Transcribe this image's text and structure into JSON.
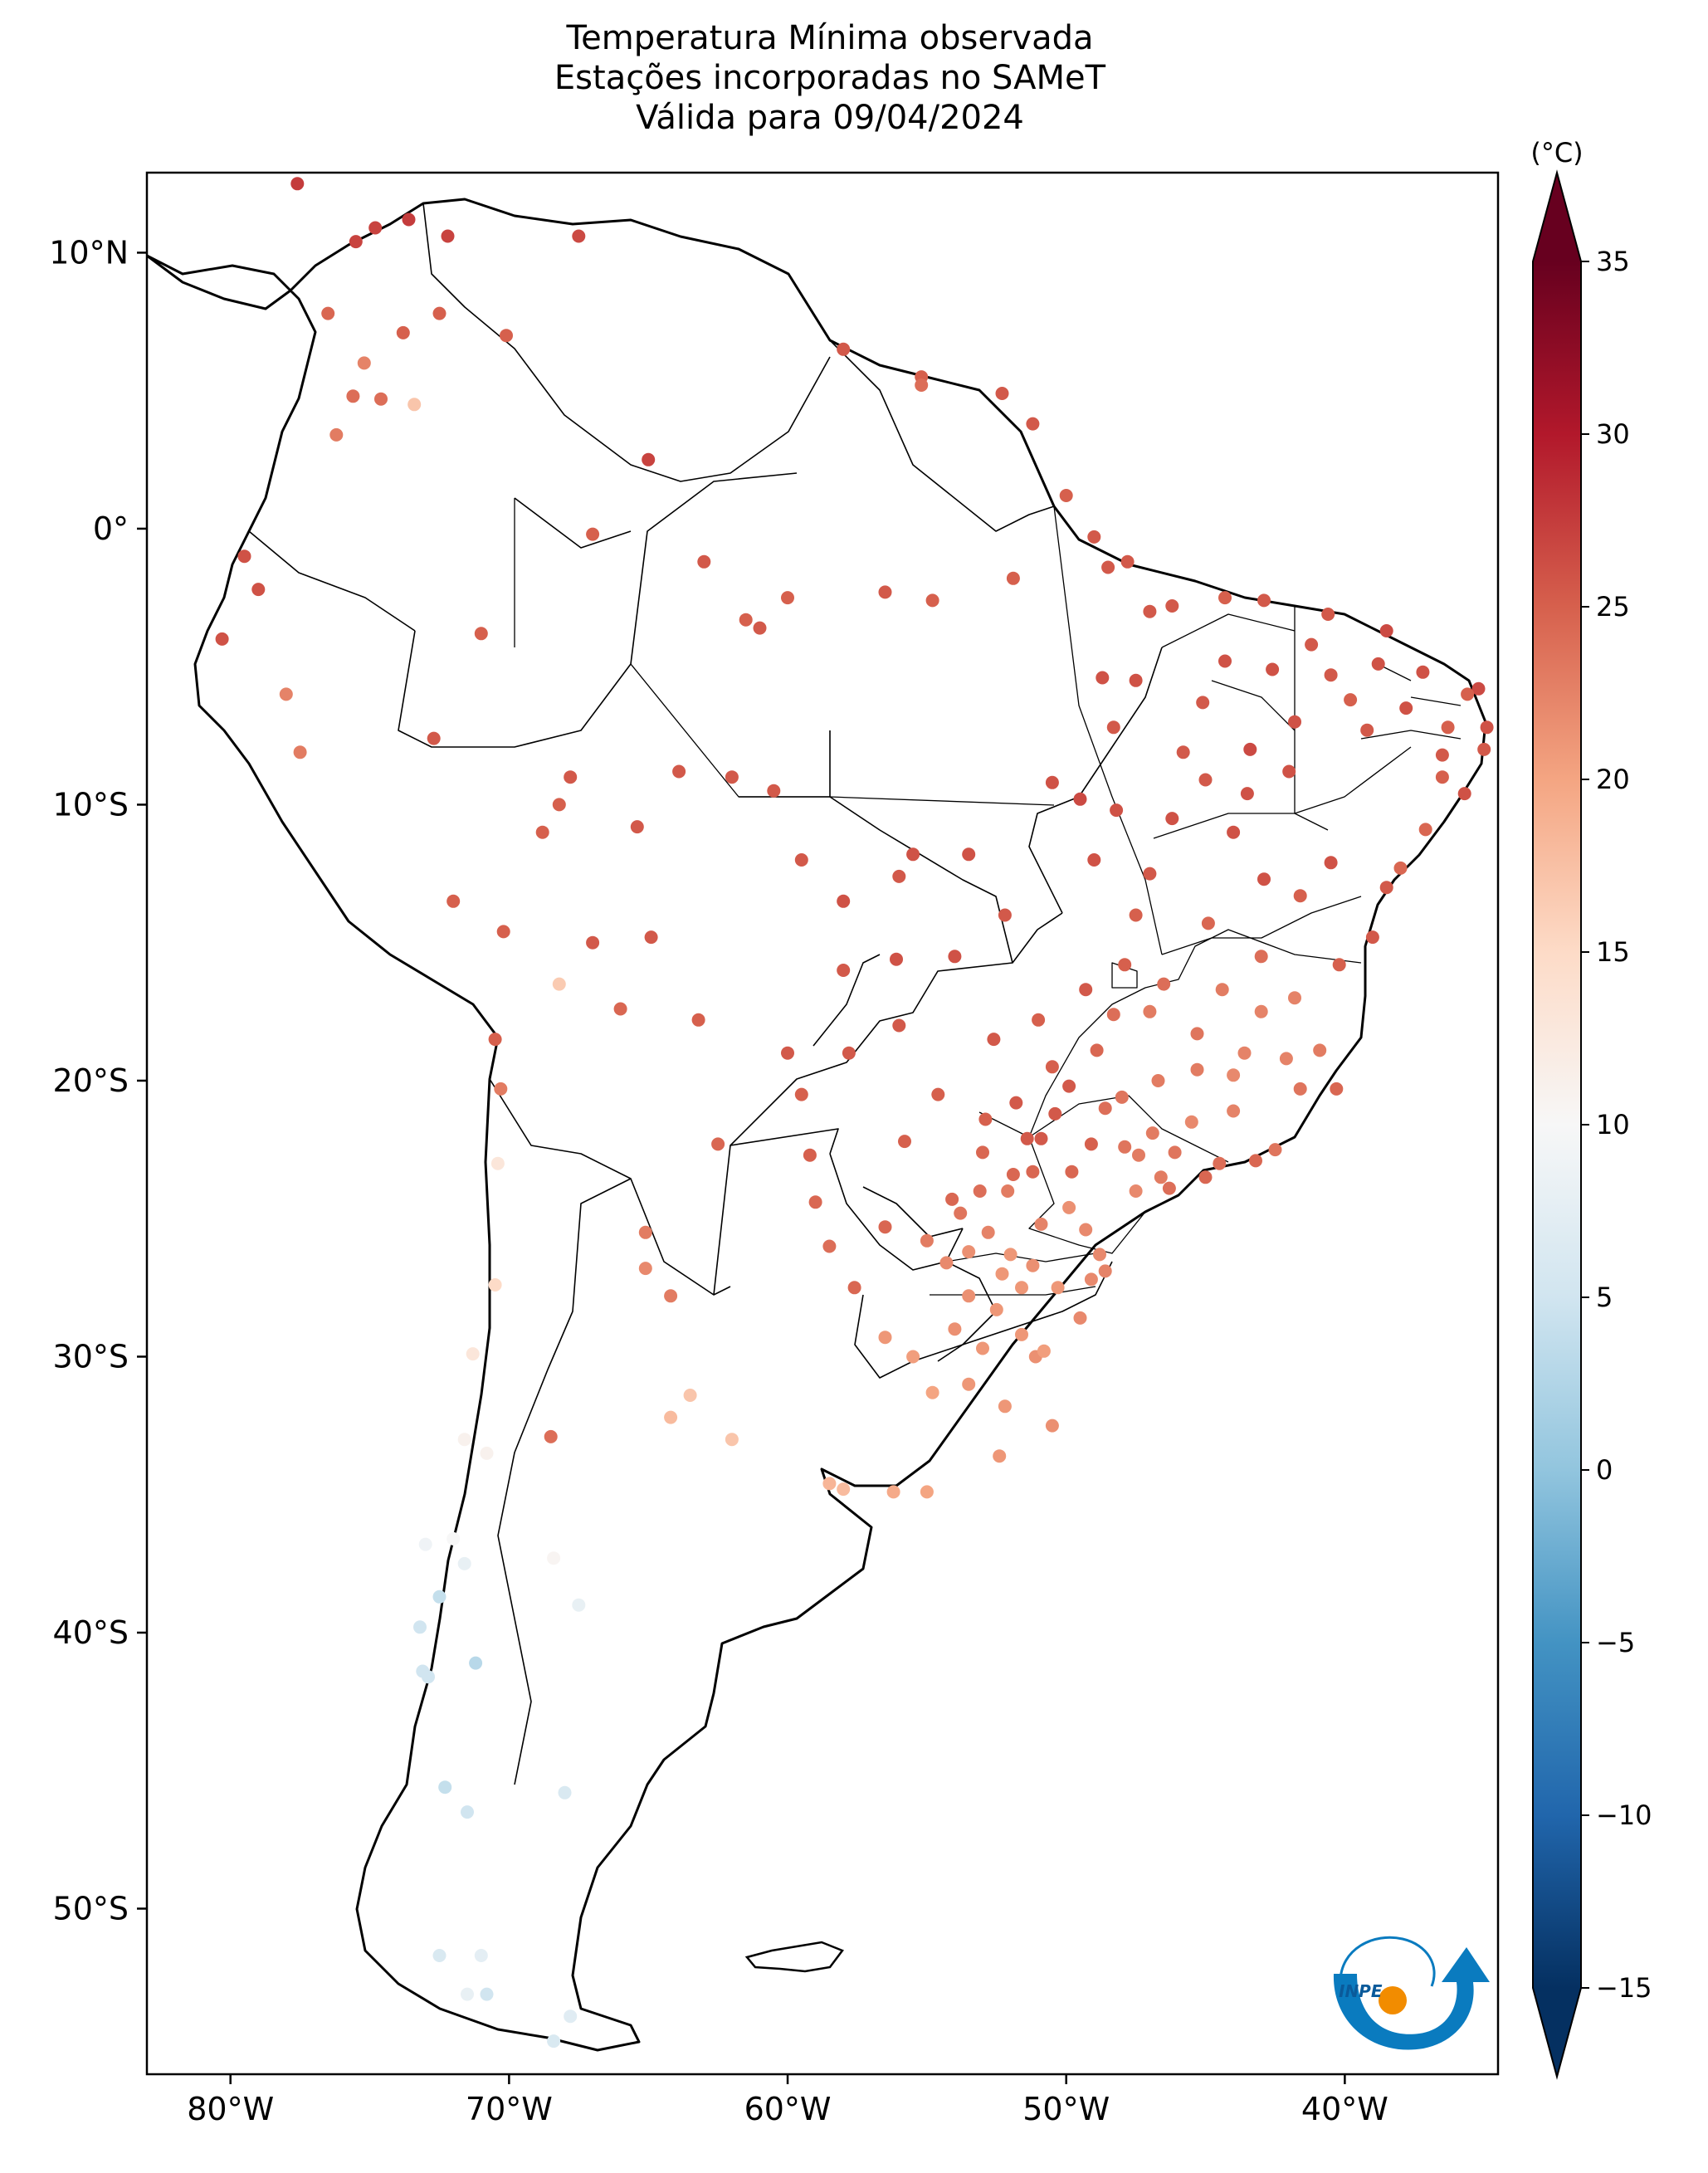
{
  "title": {
    "line1": "Temperatura Mínima observada",
    "line2": "Estações incorporadas no SAMeT",
    "line3": "Válida para 09/04/2024"
  },
  "map": {
    "lon_range": [
      -83,
      -34.5
    ],
    "lat_range": [
      -56,
      12.9
    ],
    "lat_ticks": [
      {
        "value": 10,
        "label": "10°N"
      },
      {
        "value": 0,
        "label": "0°"
      },
      {
        "value": -10,
        "label": "10°S"
      },
      {
        "value": -20,
        "label": "20°S"
      },
      {
        "value": -30,
        "label": "30°S"
      },
      {
        "value": -40,
        "label": "40°S"
      },
      {
        "value": -50,
        "label": "50°S"
      }
    ],
    "lon_ticks": [
      {
        "value": -80,
        "label": "80°W"
      },
      {
        "value": -70,
        "label": "70°W"
      },
      {
        "value": -60,
        "label": "60°W"
      },
      {
        "value": -50,
        "label": "50°W"
      },
      {
        "value": -40,
        "label": "40°W"
      }
    ]
  },
  "colorbar": {
    "unit": "(°C)",
    "min": -15,
    "max": 35,
    "ticks": [
      {
        "value": 35,
        "label": "35"
      },
      {
        "value": 30,
        "label": "30"
      },
      {
        "value": 25,
        "label": "25"
      },
      {
        "value": 20,
        "label": "20"
      },
      {
        "value": 15,
        "label": "15"
      },
      {
        "value": 10,
        "label": "10"
      },
      {
        "value": 5,
        "label": "5"
      },
      {
        "value": 0,
        "label": "0"
      },
      {
        "value": -5,
        "label": "−5"
      },
      {
        "value": -10,
        "label": "−10"
      },
      {
        "value": -15,
        "label": "−15"
      }
    ],
    "colors": [
      "#053061",
      "#2166ac",
      "#4393c3",
      "#92c5de",
      "#d1e5f0",
      "#f7f7f7",
      "#fddbc7",
      "#f4a582",
      "#d6604d",
      "#b2182b",
      "#67001f"
    ]
  },
  "logo": {
    "text": "INPE",
    "colors": [
      "#0a7bbf",
      "#f28c00"
    ]
  },
  "stations": [
    [
      -77.6,
      12.5,
      27.5
    ],
    [
      -75.5,
      10.4,
      27
    ],
    [
      -74.8,
      10.9,
      27
    ],
    [
      -73.6,
      11.2,
      27.5
    ],
    [
      -72.2,
      10.6,
      27
    ],
    [
      -67.5,
      10.6,
      26.5
    ],
    [
      -76.5,
      7.8,
      24.5
    ],
    [
      -73.8,
      7.1,
      25
    ],
    [
      -72.5,
      7.8,
      25
    ],
    [
      -70.1,
      7.0,
      25
    ],
    [
      -75.2,
      6.0,
      22.5
    ],
    [
      -74.6,
      4.7,
      24
    ],
    [
      -73.4,
      4.5,
      17
    ],
    [
      -75.6,
      4.8,
      24
    ],
    [
      -76.2,
      3.4,
      23
    ],
    [
      -65.0,
      2.5,
      27
    ],
    [
      -58.0,
      6.5,
      25.5
    ],
    [
      -55.2,
      5.5,
      25
    ],
    [
      -55.2,
      5.2,
      24
    ],
    [
      -52.3,
      4.9,
      25.5
    ],
    [
      -51.2,
      3.8,
      25.5
    ],
    [
      -79.5,
      -1.0,
      26
    ],
    [
      -79.0,
      -2.2,
      26
    ],
    [
      -80.3,
      -4.0,
      26
    ],
    [
      -78.0,
      -6.0,
      22.5
    ],
    [
      -77.5,
      -8.1,
      23
    ],
    [
      -71.0,
      -3.8,
      25
    ],
    [
      -67.0,
      -0.2,
      25
    ],
    [
      -63.0,
      -1.2,
      25.5
    ],
    [
      -60.0,
      -2.5,
      25
    ],
    [
      -61.5,
      -3.3,
      25
    ],
    [
      -61.0,
      -3.6,
      25.5
    ],
    [
      -56.5,
      -2.3,
      25.5
    ],
    [
      -54.8,
      -2.6,
      25
    ],
    [
      -51.9,
      -1.8,
      25
    ],
    [
      -48.5,
      -1.4,
      25.5
    ],
    [
      -47.8,
      -1.2,
      25.5
    ],
    [
      -49.0,
      -0.3,
      25.5
    ],
    [
      -50.0,
      1.2,
      25
    ],
    [
      -44.3,
      -2.5,
      25
    ],
    [
      -46.2,
      -2.8,
      25.5
    ],
    [
      -42.9,
      -2.6,
      25.5
    ],
    [
      -40.6,
      -3.1,
      25.5
    ],
    [
      -38.5,
      -3.7,
      26.5
    ],
    [
      -37.2,
      -5.2,
      26
    ],
    [
      -35.2,
      -5.8,
      26.5
    ],
    [
      -34.9,
      -7.2,
      26
    ],
    [
      -35.7,
      -9.6,
      26
    ],
    [
      -36.5,
      -8.2,
      25.5
    ],
    [
      -37.8,
      -6.5,
      26
    ],
    [
      -39.2,
      -7.3,
      25.5
    ],
    [
      -40.5,
      -5.3,
      25.5
    ],
    [
      -42.6,
      -5.1,
      26
    ],
    [
      -41.8,
      -7.0,
      26
    ],
    [
      -43.4,
      -8.0,
      26.5
    ],
    [
      -44.3,
      -4.8,
      26
    ],
    [
      -45.1,
      -6.3,
      25.5
    ],
    [
      -47.5,
      -5.5,
      26
    ],
    [
      -48.3,
      -7.2,
      25.5
    ],
    [
      -49.5,
      -9.8,
      26.5
    ],
    [
      -48.2,
      -10.2,
      26
    ],
    [
      -49.0,
      -12.0,
      26
    ],
    [
      -47.0,
      -12.5,
      25.5
    ],
    [
      -46.2,
      -10.5,
      26
    ],
    [
      -45.0,
      -9.1,
      25.5
    ],
    [
      -44.0,
      -11.0,
      26
    ],
    [
      -42.9,
      -12.7,
      26
    ],
    [
      -40.5,
      -12.1,
      26
    ],
    [
      -38.5,
      -13.0,
      25.5
    ],
    [
      -39.0,
      -14.8,
      25.5
    ],
    [
      -40.2,
      -15.8,
      25
    ],
    [
      -41.6,
      -13.3,
      25
    ],
    [
      -43.0,
      -15.5,
      24
    ],
    [
      -44.4,
      -16.7,
      23
    ],
    [
      -45.3,
      -18.3,
      23.5
    ],
    [
      -43.6,
      -19.0,
      22.5
    ],
    [
      -41.6,
      -20.3,
      23.5
    ],
    [
      -40.3,
      -20.3,
      24.5
    ],
    [
      -42.5,
      -22.5,
      23.5
    ],
    [
      -43.2,
      -22.9,
      24.5
    ],
    [
      -44.5,
      -23.0,
      24
    ],
    [
      -46.6,
      -23.5,
      23
    ],
    [
      -47.9,
      -22.4,
      23.5
    ],
    [
      -49.1,
      -22.3,
      25
    ],
    [
      -51.4,
      -22.1,
      25.5
    ],
    [
      -50.4,
      -21.2,
      25.5
    ],
    [
      -48.0,
      -20.6,
      23.5
    ],
    [
      -47.9,
      -15.8,
      25
    ],
    [
      -49.3,
      -16.7,
      25.5
    ],
    [
      -51.0,
      -17.8,
      25
    ],
    [
      -52.6,
      -18.5,
      25.5
    ],
    [
      -54.6,
      -20.5,
      25
    ],
    [
      -55.8,
      -22.2,
      25
    ],
    [
      -53.0,
      -22.6,
      24.5
    ],
    [
      -52.1,
      -24.0,
      23
    ],
    [
      -51.2,
      -23.3,
      24.5
    ],
    [
      -49.3,
      -25.4,
      22
    ],
    [
      -48.6,
      -26.9,
      22.5
    ],
    [
      -50.3,
      -27.5,
      21
    ],
    [
      -52.0,
      -26.3,
      21
    ],
    [
      -53.5,
      -27.8,
      21.5
    ],
    [
      -51.6,
      -29.2,
      21
    ],
    [
      -53.0,
      -29.7,
      21
    ],
    [
      -55.5,
      -30.0,
      20.5
    ],
    [
      -54.8,
      -31.3,
      20
    ],
    [
      -52.2,
      -31.8,
      21
    ],
    [
      -50.5,
      -32.5,
      21.5
    ],
    [
      -51.1,
      -30.0,
      21.5
    ],
    [
      -56.0,
      -12.6,
      25.5
    ],
    [
      -56.1,
      -15.6,
      26
    ],
    [
      -54.0,
      -15.5,
      26
    ],
    [
      -52.2,
      -14.0,
      25.5
    ],
    [
      -53.5,
      -11.8,
      26
    ],
    [
      -55.5,
      -11.8,
      26
    ],
    [
      -58.0,
      -13.5,
      26
    ],
    [
      -59.5,
      -12.0,
      25.5
    ],
    [
      -60.5,
      -9.5,
      25.5
    ],
    [
      -62.0,
      -9.0,
      25.5
    ],
    [
      -63.9,
      -8.8,
      25.5
    ],
    [
      -65.4,
      -10.8,
      25.5
    ],
    [
      -67.8,
      -9.0,
      25.5
    ],
    [
      -68.2,
      -10.0,
      25
    ],
    [
      -68.8,
      -11.0,
      25
    ],
    [
      -72.7,
      -7.6,
      25.5
    ],
    [
      -72.0,
      -13.5,
      25
    ],
    [
      -70.2,
      -14.6,
      25
    ],
    [
      -68.2,
      -16.5,
      16.5
    ],
    [
      -67.0,
      -15.0,
      25.5
    ],
    [
      -64.9,
      -14.8,
      25.5
    ],
    [
      -63.2,
      -17.8,
      25
    ],
    [
      -66.0,
      -17.4,
      24.5
    ],
    [
      -70.5,
      -18.5,
      25
    ],
    [
      -70.3,
      -20.3,
      23
    ],
    [
      -70.4,
      -23.0,
      13
    ],
    [
      -70.5,
      -27.4,
      15
    ],
    [
      -71.3,
      -29.9,
      13
    ],
    [
      -71.6,
      -33.0,
      11
    ],
    [
      -70.8,
      -33.5,
      11
    ],
    [
      -72.0,
      -36.6,
      10
    ],
    [
      -73.0,
      -36.8,
      9
    ],
    [
      -71.6,
      -37.5,
      8
    ],
    [
      -73.2,
      -39.8,
      5
    ],
    [
      -72.5,
      -38.7,
      4
    ],
    [
      -73.1,
      -41.4,
      5
    ],
    [
      -72.9,
      -41.6,
      5
    ],
    [
      -71.2,
      -41.1,
      3
    ],
    [
      -72.3,
      -45.6,
      4
    ],
    [
      -71.5,
      -46.5,
      5
    ],
    [
      -68.0,
      -45.8,
      6
    ],
    [
      -67.5,
      -39.0,
      8
    ],
    [
      -68.4,
      -37.3,
      10.5
    ],
    [
      -68.5,
      -32.9,
      24
    ],
    [
      -65.1,
      -26.8,
      22
    ],
    [
      -64.2,
      -27.8,
      23
    ],
    [
      -63.5,
      -31.4,
      17
    ],
    [
      -64.2,
      -32.2,
      18
    ],
    [
      -62.0,
      -33.0,
      17
    ],
    [
      -58.5,
      -34.6,
      18.5
    ],
    [
      -58.0,
      -34.8,
      18
    ],
    [
      -56.2,
      -34.9,
      19.5
    ],
    [
      -55.0,
      -34.9,
      20
    ],
    [
      -57.6,
      -27.5,
      24.5
    ],
    [
      -58.5,
      -26.0,
      24
    ],
    [
      -56.5,
      -25.3,
      24.5
    ],
    [
      -55.0,
      -25.8,
      23
    ],
    [
      -59.0,
      -24.4,
      24.5
    ],
    [
      -59.2,
      -22.7,
      25
    ],
    [
      -62.5,
      -22.3,
      24.5
    ],
    [
      -60.0,
      -19.0,
      25.5
    ],
    [
      -57.8,
      -19.0,
      25.5
    ],
    [
      -56.0,
      -18.0,
      25.5
    ],
    [
      -58.0,
      -16.0,
      25.5
    ],
    [
      -59.5,
      -20.5,
      25
    ],
    [
      -65.1,
      -25.5,
      23
    ],
    [
      -71.0,
      -51.7,
      7.5
    ],
    [
      -72.5,
      -51.7,
      6
    ],
    [
      -70.8,
      -53.1,
      5
    ],
    [
      -68.4,
      -54.8,
      6
    ],
    [
      -71.5,
      -53.1,
      8
    ],
    [
      -67.8,
      -53.9,
      7
    ],
    [
      -38.0,
      -12.3,
      24.5
    ],
    [
      -37.1,
      -10.9,
      24.5
    ],
    [
      -36.5,
      -9.0,
      25
    ],
    [
      -35.0,
      -8.0,
      25.5
    ],
    [
      -35.6,
      -6.0,
      25
    ],
    [
      -36.3,
      -7.2,
      25
    ],
    [
      -38.8,
      -4.9,
      26
    ],
    [
      -39.8,
      -6.2,
      25
    ],
    [
      -41.2,
      -4.2,
      25.5
    ],
    [
      -42.0,
      -8.8,
      26
    ],
    [
      -43.5,
      -9.6,
      26
    ],
    [
      -45.8,
      -8.1,
      25.5
    ],
    [
      -47.0,
      -3.0,
      25.5
    ],
    [
      -48.7,
      -5.4,
      26
    ],
    [
      -50.5,
      -9.2,
      26
    ],
    [
      -47.5,
      -14.0,
      25
    ],
    [
      -46.5,
      -16.5,
      24
    ],
    [
      -44.9,
      -14.3,
      24.5
    ],
    [
      -43.0,
      -17.5,
      22.5
    ],
    [
      -41.8,
      -17.0,
      22.5
    ],
    [
      -40.9,
      -18.9,
      23
    ],
    [
      -44.0,
      -21.1,
      22.5
    ],
    [
      -45.5,
      -21.5,
      22
    ],
    [
      -46.9,
      -21.9,
      23
    ],
    [
      -47.5,
      -24.0,
      22
    ],
    [
      -46.3,
      -23.9,
      24
    ],
    [
      -45.0,
      -23.5,
      24.5
    ],
    [
      -49.9,
      -24.6,
      21.5
    ],
    [
      -50.9,
      -25.2,
      22.5
    ],
    [
      -52.8,
      -25.5,
      22.5
    ],
    [
      -53.8,
      -24.8,
      23.5
    ],
    [
      -54.3,
      -26.6,
      22
    ],
    [
      -51.6,
      -27.5,
      21
    ],
    [
      -49.5,
      -28.6,
      22
    ],
    [
      -50.8,
      -29.8,
      20.5
    ],
    [
      -52.5,
      -28.3,
      21
    ],
    [
      -54.0,
      -29.0,
      21.5
    ],
    [
      -56.5,
      -29.3,
      21
    ],
    [
      -53.5,
      -31.0,
      21
    ],
    [
      -52.4,
      -33.6,
      21
    ],
    [
      -44.0,
      -19.8,
      22
    ],
    [
      -42.1,
      -19.2,
      22.5
    ],
    [
      -45.3,
      -19.6,
      23
    ],
    [
      -46.7,
      -20.0,
      23
    ],
    [
      -48.9,
      -18.9,
      24.5
    ],
    [
      -50.5,
      -19.5,
      25
    ],
    [
      -47.0,
      -17.5,
      23
    ],
    [
      -48.3,
      -17.6,
      24
    ],
    [
      -49.9,
      -20.2,
      25.5
    ],
    [
      -51.8,
      -20.8,
      25.5
    ],
    [
      -52.9,
      -21.4,
      25
    ],
    [
      -50.9,
      -22.1,
      25.5
    ],
    [
      -48.6,
      -21.0,
      24
    ],
    [
      -46.1,
      -22.6,
      23.5
    ],
    [
      -47.4,
      -22.7,
      23
    ],
    [
      -49.8,
      -23.3,
      24.5
    ],
    [
      -51.9,
      -23.4,
      24.5
    ],
    [
      -53.1,
      -24.0,
      24
    ],
    [
      -54.1,
      -24.3,
      24.5
    ],
    [
      -48.8,
      -26.3,
      22
    ],
    [
      -49.1,
      -27.2,
      22
    ],
    [
      -51.2,
      -26.7,
      21.5
    ],
    [
      -52.3,
      -27.0,
      21
    ],
    [
      -53.5,
      -26.2,
      21.5
    ]
  ]
}
